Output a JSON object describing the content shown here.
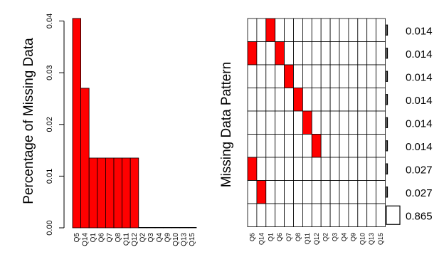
{
  "chart_data": [
    {
      "type": "bar",
      "ylabel": "Percentage of Missing Data",
      "xlabel": "",
      "categories": [
        "Q5",
        "Q14",
        "Q1",
        "Q6",
        "Q7",
        "Q8",
        "Q11",
        "Q12",
        "Q2",
        "Q3",
        "Q4",
        "Q9",
        "Q10",
        "Q13",
        "Q15"
      ],
      "values": [
        0.0405,
        0.027,
        0.0135,
        0.0135,
        0.0135,
        0.0135,
        0.0135,
        0.0135,
        0,
        0,
        0,
        0,
        0,
        0,
        0
      ],
      "ylim": [
        0,
        0.042
      ],
      "y_ticks": [
        "0.00",
        "0.01",
        "0.02",
        "0.03",
        "0.04"
      ],
      "bar_color": "#ff0000"
    },
    {
      "type": "heatmap",
      "ylabel": "Missing Data Pattern",
      "columns": [
        "Q5",
        "Q14",
        "Q1",
        "Q6",
        "Q7",
        "Q8",
        "Q11",
        "Q12",
        "Q2",
        "Q3",
        "Q4",
        "Q9",
        "Q10",
        "Q13",
        "Q15"
      ],
      "rows": [
        {
          "missing": [
            "Q1"
          ],
          "proportion": "0.014",
          "value": 0.014
        },
        {
          "missing": [
            "Q5",
            "Q6"
          ],
          "proportion": "0.014",
          "value": 0.014
        },
        {
          "missing": [
            "Q7"
          ],
          "proportion": "0.014",
          "value": 0.014
        },
        {
          "missing": [
            "Q8"
          ],
          "proportion": "0.014",
          "value": 0.014
        },
        {
          "missing": [
            "Q11"
          ],
          "proportion": "0.014",
          "value": 0.014
        },
        {
          "missing": [
            "Q12"
          ],
          "proportion": "0.014",
          "value": 0.014
        },
        {
          "missing": [
            "Q5"
          ],
          "proportion": "0.027",
          "value": 0.027
        },
        {
          "missing": [
            "Q14"
          ],
          "proportion": "0.027",
          "value": 0.027
        },
        {
          "missing": [],
          "proportion": "0.865",
          "value": 0.865
        }
      ],
      "missing_color": "#ff0000",
      "observed_color": "#ffffff"
    }
  ]
}
